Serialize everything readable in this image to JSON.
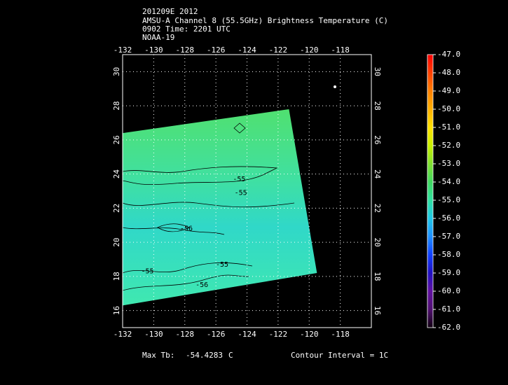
{
  "chart_data": {
    "type": "swath",
    "title": [
      "201209E 2012",
      "AMSU-A Channel 8 (55.5GHz) Brightness Temperature (C)",
      "0902 Time: 2201 UTC",
      "NOAA-19"
    ],
    "xlim": [
      -132,
      -116
    ],
    "xticks": [
      -132,
      -130,
      -128,
      -126,
      -124,
      -122,
      -120,
      -118
    ],
    "ylim": [
      15,
      31
    ],
    "yticks": [
      16,
      18,
      20,
      22,
      24,
      26,
      28,
      30
    ],
    "grid": true,
    "swath": {
      "lon": [
        -132,
        -121.3,
        -119.5,
        -132
      ],
      "lat": [
        26.4,
        27.8,
        18.2,
        16.3
      ]
    },
    "contour_labels": [
      {
        "text": "-55",
        "lon": -124.5,
        "lat": 23.7
      },
      {
        "text": "-55",
        "lon": -124.4,
        "lat": 22.9
      },
      {
        "text": "-56",
        "lon": -127.9,
        "lat": 20.8
      },
      {
        "text": "-55",
        "lon": -125.6,
        "lat": 18.7
      },
      {
        "text": "-55",
        "lon": -130.4,
        "lat": 18.3
      },
      {
        "text": "-56",
        "lon": -126.9,
        "lat": 17.5
      }
    ],
    "colorbar": {
      "ticks": [
        {
          "value": -47,
          "label": "-47.0"
        },
        {
          "value": -48,
          "label": "-48.0"
        },
        {
          "value": -49,
          "label": "-49.0"
        },
        {
          "value": -50,
          "label": "-50.0"
        },
        {
          "value": -51,
          "label": "-51.0"
        },
        {
          "value": -52,
          "label": "-52.0"
        },
        {
          "value": -53,
          "label": "-53.0"
        },
        {
          "value": -54,
          "label": "-54.0"
        },
        {
          "value": -55,
          "label": "-55.0"
        },
        {
          "value": -56,
          "label": "-56.0"
        },
        {
          "value": -57,
          "label": "-57.0"
        },
        {
          "value": -58,
          "label": "-58.0"
        },
        {
          "value": -59,
          "label": "-59.0"
        },
        {
          "value": -60,
          "label": "-60.0"
        },
        {
          "value": -61,
          "label": "-61.0"
        },
        {
          "value": -62,
          "label": "-62.0"
        }
      ],
      "colors": [
        "#ff0000",
        "#ff4000",
        "#ff8000",
        "#ffb000",
        "#ffe000",
        "#c8f000",
        "#80e030",
        "#40d860",
        "#30e0a0",
        "#20c8e8",
        "#2090ff",
        "#1040ff",
        "#2010c0",
        "#6010a0",
        "#501070",
        "#100010"
      ]
    },
    "max_tb": {
      "label": "Max Tb:",
      "value": -54.4283,
      "unit": "C"
    },
    "contour_interval": "Contour Interval = 1C"
  }
}
